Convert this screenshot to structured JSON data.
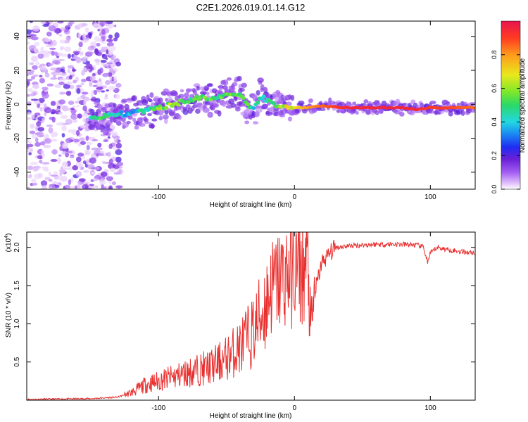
{
  "figure_title": "C2E1.2026.019.01.14.G12",
  "chart_data": [
    {
      "type": "heatmap",
      "title": "C2E1.2026.019.01.14.G12",
      "xlabel": "Height of straight line (km)",
      "ylabel": "Frequency (Hz)",
      "xlim": [
        -197,
        133
      ],
      "ylim": [
        -50,
        49
      ],
      "x_ticks": [
        -100,
        0,
        100
      ],
      "y_ticks": [
        -40,
        -20,
        0,
        20,
        40
      ],
      "colorbar": {
        "label": "Normalized spectral amplitude",
        "range": [
          0,
          1
        ],
        "ticks": [
          0.0,
          0.2,
          0.4,
          0.6,
          0.8
        ],
        "tick_labels": [
          "0.0",
          "0.2",
          "0.4",
          "0.6",
          "0.8"
        ]
      },
      "ridge": {
        "x": [
          -150,
          -140,
          -130,
          -120,
          -110,
          -100,
          -90,
          -80,
          -70,
          -60,
          -50,
          -40,
          -35,
          -30,
          -25,
          -20,
          -15,
          -10,
          0,
          10,
          20,
          40,
          60,
          80,
          90,
          100,
          110,
          130
        ],
        "frequency": [
          -8,
          -7,
          -6,
          -5,
          -4,
          -2,
          0,
          2,
          4,
          3,
          5,
          6,
          0,
          -3,
          5,
          2,
          0,
          -1,
          -2,
          -2,
          -1,
          -2,
          -2,
          -2,
          -3,
          -2,
          -2,
          -2
        ],
        "amplitude": [
          0.45,
          0.5,
          0.4,
          0.35,
          0.45,
          0.55,
          0.6,
          0.5,
          0.55,
          0.5,
          0.55,
          0.55,
          0.5,
          0.4,
          0.45,
          0.5,
          0.55,
          0.6,
          0.7,
          0.8,
          0.85,
          0.95,
          0.95,
          0.95,
          0.95,
          0.9,
          0.9,
          0.85
        ]
      }
    },
    {
      "type": "line",
      "xlabel": "Height of straight line (km)",
      "ylabel": "SNR (10 * v/v)",
      "y_multiplier": "(x10",
      "y_multiplier_exp": "4",
      "y_multiplier_close": ")",
      "xlim": [
        -197,
        133
      ],
      "ylim": [
        0,
        2.2
      ],
      "x_ticks": [
        -100,
        0,
        100
      ],
      "y_ticks": [
        0.5,
        1.0,
        1.5,
        2.0
      ],
      "y_tick_labels": [
        "0.5",
        "1.0",
        "1.5",
        "2.0"
      ],
      "color": "#e8302f",
      "series": [
        {
          "name": "SNR",
          "x": [
            -197,
            -150,
            -130,
            -120,
            -110,
            -100,
            -90,
            -80,
            -70,
            -60,
            -50,
            -40,
            -30,
            -25,
            -20,
            -18,
            -15,
            -10,
            -5,
            0,
            5,
            10,
            12,
            15,
            20,
            30,
            40,
            50,
            60,
            70,
            80,
            90,
            95,
            98,
            100,
            105,
            110,
            120,
            133
          ],
          "y": [
            0.01,
            0.02,
            0.04,
            0.1,
            0.2,
            0.25,
            0.3,
            0.35,
            0.4,
            0.45,
            0.55,
            0.7,
            0.9,
            1.1,
            1.3,
            1.45,
            1.5,
            1.6,
            1.65,
            1.7,
            1.7,
            1.75,
            0.85,
            1.4,
            1.8,
            2.0,
            2.02,
            2.03,
            2.04,
            2.04,
            2.04,
            2.03,
            2.0,
            1.8,
            1.92,
            2.0,
            1.98,
            1.95,
            1.93
          ]
        }
      ]
    }
  ]
}
